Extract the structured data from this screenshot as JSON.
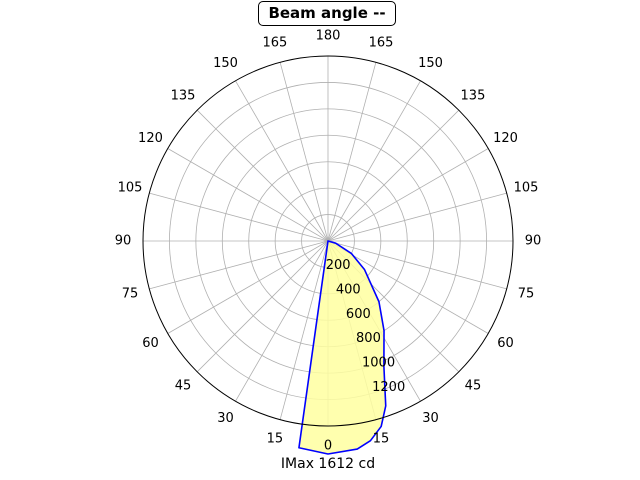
{
  "chart_data": {
    "type": "polar-line",
    "title": "Beam angle --",
    "xlabel": "IMax 1612 cd",
    "ylabel": "",
    "angle_tick_labels": [
      "0",
      "15",
      "30",
      "45",
      "60",
      "75",
      "90",
      "105",
      "120",
      "135",
      "150",
      "165",
      "180",
      "165",
      "150",
      "135",
      "120",
      "105",
      "90",
      "75",
      "60",
      "45",
      "30",
      "15"
    ],
    "radial_tick_labels": [
      "200",
      "400",
      "600",
      "800",
      "1000",
      "1200"
    ],
    "radial_ticks": [
      200,
      400,
      600,
      800,
      1000,
      1200
    ],
    "rlim": [
      0,
      1400
    ],
    "theta_zero": "bottom",
    "grid": true,
    "series": [
      {
        "color": "#0000ff",
        "fill": "#ffffa0",
        "points": [
          {
            "angle": -8,
            "value": 1580
          },
          {
            "angle": 0,
            "value": 1612
          },
          {
            "angle": 8,
            "value": 1590
          },
          {
            "angle": 12,
            "value": 1545
          },
          {
            "angle": 16,
            "value": 1460
          },
          {
            "angle": 19.3,
            "value": 1322
          },
          {
            "angle": 24,
            "value": 1040
          },
          {
            "angle": 32,
            "value": 800
          },
          {
            "angle": 40,
            "value": 600
          },
          {
            "angle": 52,
            "value": 350
          },
          {
            "angle": 62,
            "value": 200
          },
          {
            "angle": 74,
            "value": 60
          },
          {
            "angle": 90,
            "value": 0
          }
        ]
      }
    ]
  }
}
